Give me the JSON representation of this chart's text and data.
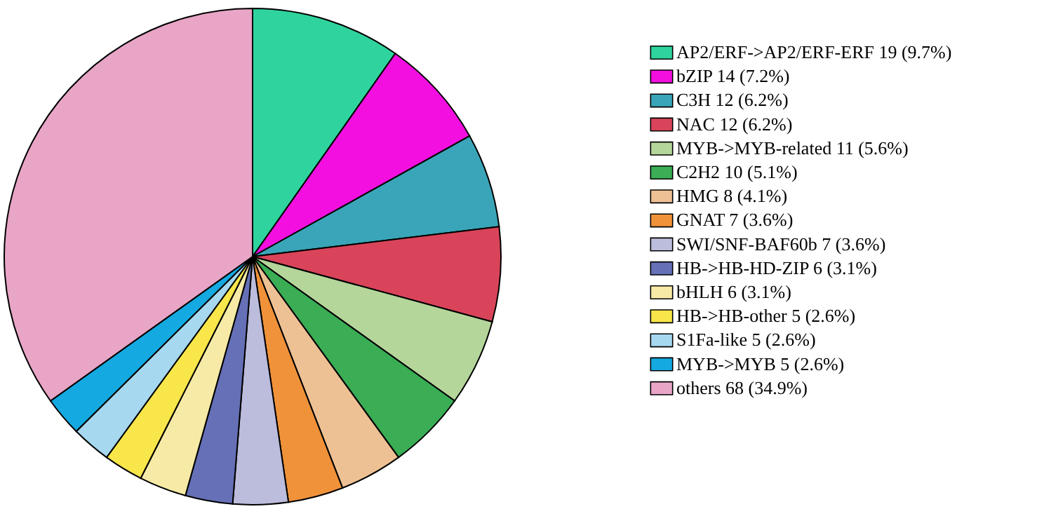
{
  "chart_data": {
    "type": "pie",
    "legend": "right",
    "categories": [
      "AP2/ERF->AP2/ERF-ERF  19 (9.7%)",
      "bZIP  14 (7.2%)",
      "C3H  12 (6.2%)",
      "NAC  12 (6.2%)",
      "MYB->MYB-related  11 (5.6%)",
      "C2H2  10 (5.1%)",
      "HMG  8 (4.1%)",
      "GNAT  7 (3.6%)",
      "SWI/SNF-BAF60b  7 (3.6%)",
      "HB->HB-HD-ZIP  6 (3.1%)",
      "bHLH  6 (3.1%)",
      "HB->HB-other  5 (2.6%)",
      "S1Fa-like  5 (2.6%)",
      "MYB->MYB  5 (2.6%)",
      "others  68 (34.9%)"
    ],
    "values": [
      19,
      14,
      12,
      12,
      11,
      10,
      8,
      7,
      7,
      6,
      6,
      5,
      5,
      5,
      68
    ],
    "colors": [
      "#2fd39e",
      "#f20fe0",
      "#3aa5b8",
      "#d9445a",
      "#b5d69a",
      "#3aad55",
      "#edc194",
      "#f0923a",
      "#bcbcdc",
      "#6570b6",
      "#f6eaa6",
      "#f8e64a",
      "#a6d8ef",
      "#14a9e0",
      "#e8a5c6"
    ]
  }
}
